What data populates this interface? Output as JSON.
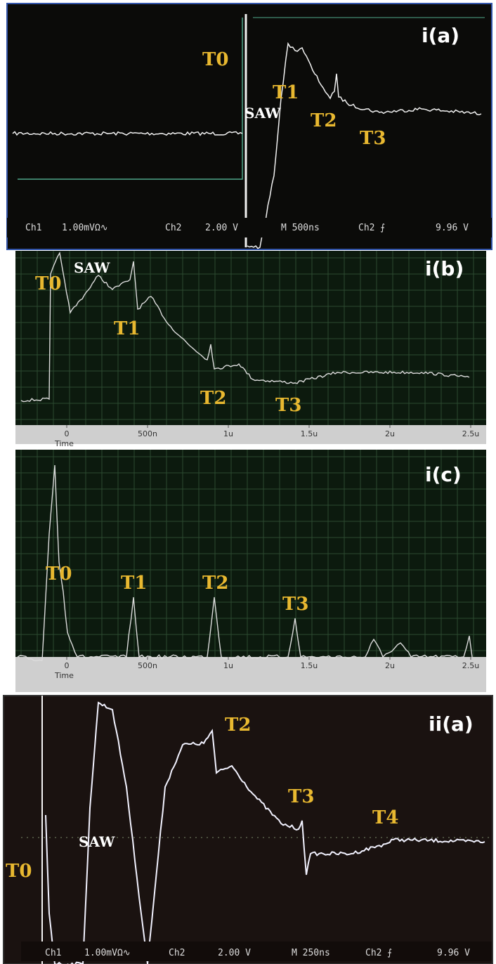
{
  "panels": [
    {
      "tag": "i(a)",
      "labels": [
        "T0",
        "T1",
        "SAW",
        "T2",
        "T3"
      ],
      "status": [
        "Ch1",
        "1.00mVΩ∿",
        "Ch2",
        "2.00 V",
        "M 500ns",
        "Ch2 ⨍",
        "9.96 V"
      ]
    },
    {
      "tag": "i(b)",
      "labels": [
        "T0",
        "SAW",
        "T1",
        "T2",
        "T3"
      ],
      "axis": [
        "0",
        "500n",
        "1u",
        "1.5u",
        "2u",
        "2.5u"
      ],
      "axis_title": "Time"
    },
    {
      "tag": "i(c)",
      "labels": [
        "T0",
        "T1",
        "T2",
        "T3"
      ],
      "axis": [
        "0",
        "500n",
        "1u",
        "1.5u",
        "2u",
        "2.5u"
      ],
      "axis_title": "Time"
    },
    {
      "tag": "ii(a)",
      "labels": [
        "T2",
        "T3",
        "T4",
        "SAW",
        "T0"
      ],
      "status": [
        "Ch1",
        "1.00mVΩ∿",
        "Ch2",
        "2.00 V",
        "M 250ns",
        "Ch2 ⨍",
        "9.96 V"
      ]
    }
  ]
}
